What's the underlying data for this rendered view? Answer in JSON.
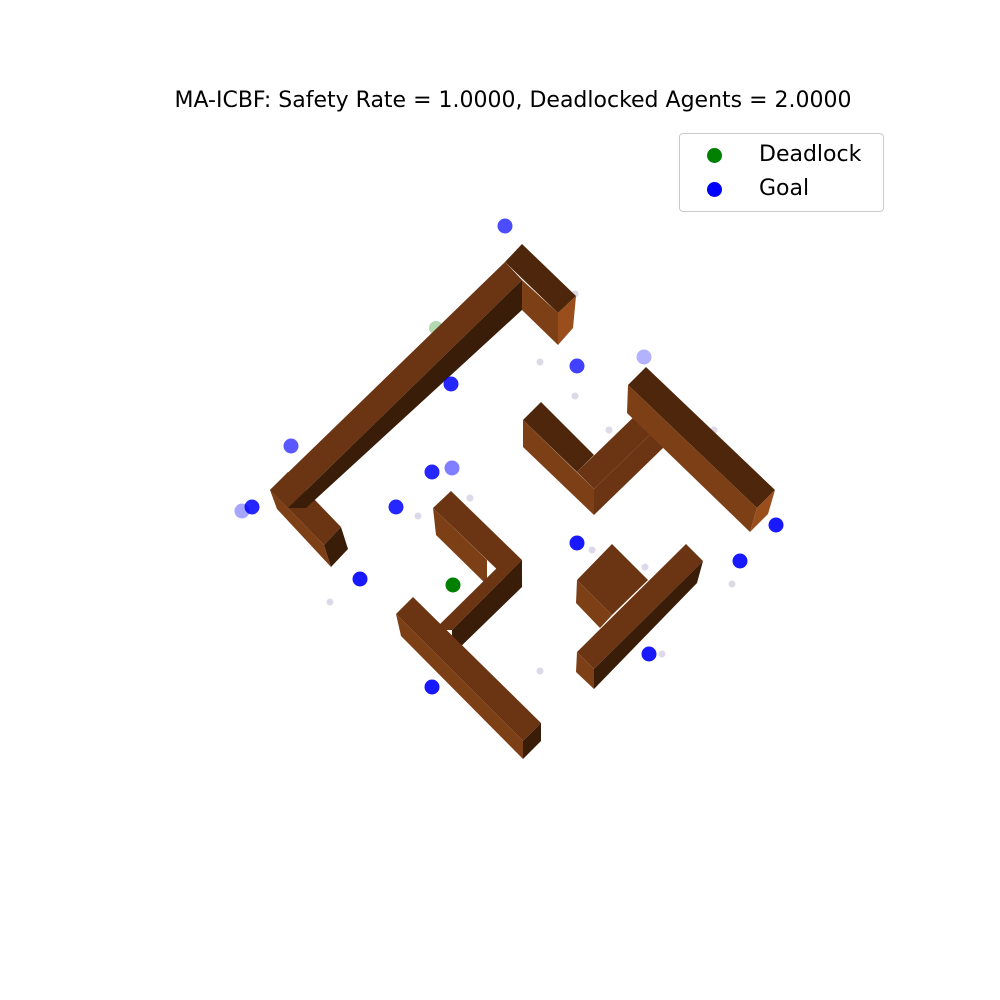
{
  "title": "MA-ICBF: Safety Rate = 1.0000, Deadlocked Agents = 2.0000",
  "legend": {
    "deadlock": {
      "label": "Deadlock",
      "color": "#008000"
    },
    "goal": {
      "label": "Goal",
      "color": "#0000ff"
    }
  },
  "colors": {
    "wall_top": "#6b3412",
    "wall_front": "#7d3f16",
    "wall_side": "#3a1d08",
    "wall_dark": "#4d260c",
    "agent": "#0000ff",
    "deadlock": "#008000",
    "trace": "#c8c0d8"
  }
}
